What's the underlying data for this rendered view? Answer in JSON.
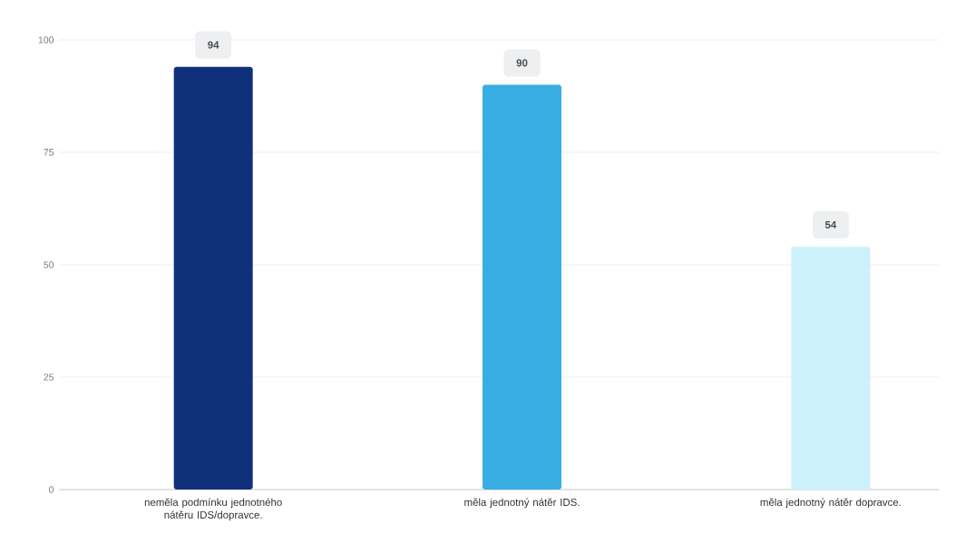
{
  "chart_data": {
    "type": "bar",
    "categories": [
      "neměla podmínku jednotného nátěru IDS/dopravce.",
      "měla jednotný nátěr IDS.",
      "měla jednotný nátěr dopravce."
    ],
    "values": [
      94,
      90,
      54
    ],
    "colors": [
      "#11307c",
      "#38ade3",
      "#cdf1fa"
    ],
    "ylim": [
      0,
      100
    ],
    "yticks": [
      0,
      25,
      50,
      75,
      100
    ],
    "grid": "y",
    "data_labels": true
  }
}
